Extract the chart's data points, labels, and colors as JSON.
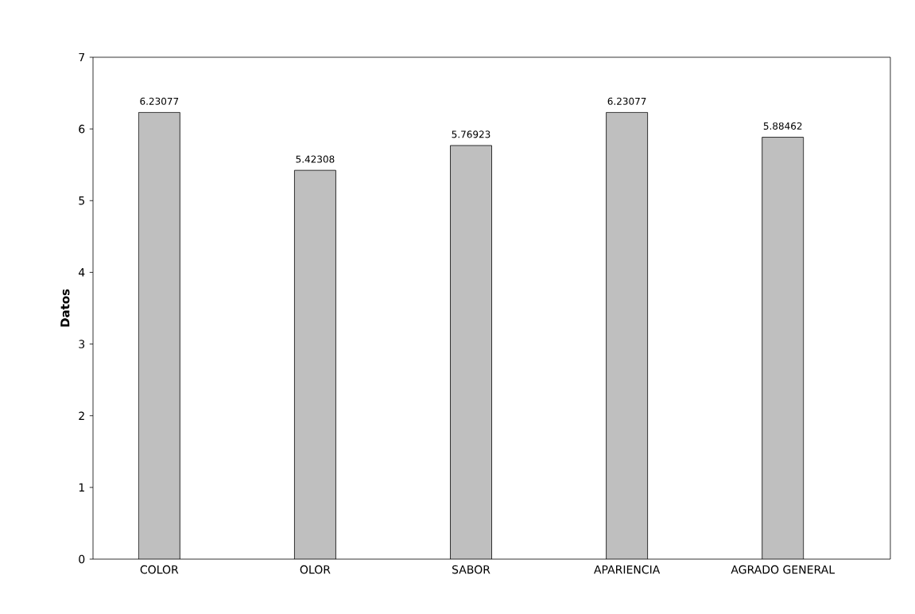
{
  "chart_data": {
    "type": "bar",
    "ylabel": "Datos",
    "categories": [
      "COLOR",
      "OLOR",
      "SABOR",
      "APARIENCIA",
      "AGRADO GENERAL"
    ],
    "values": [
      6.23077,
      5.42308,
      5.76923,
      6.23077,
      5.88462
    ],
    "color": "#bfbfbf",
    "ylim": [
      0,
      7
    ],
    "yticks": [
      0,
      1,
      2,
      3,
      4,
      5,
      6,
      7
    ],
    "data_labels": true,
    "grid": false
  }
}
